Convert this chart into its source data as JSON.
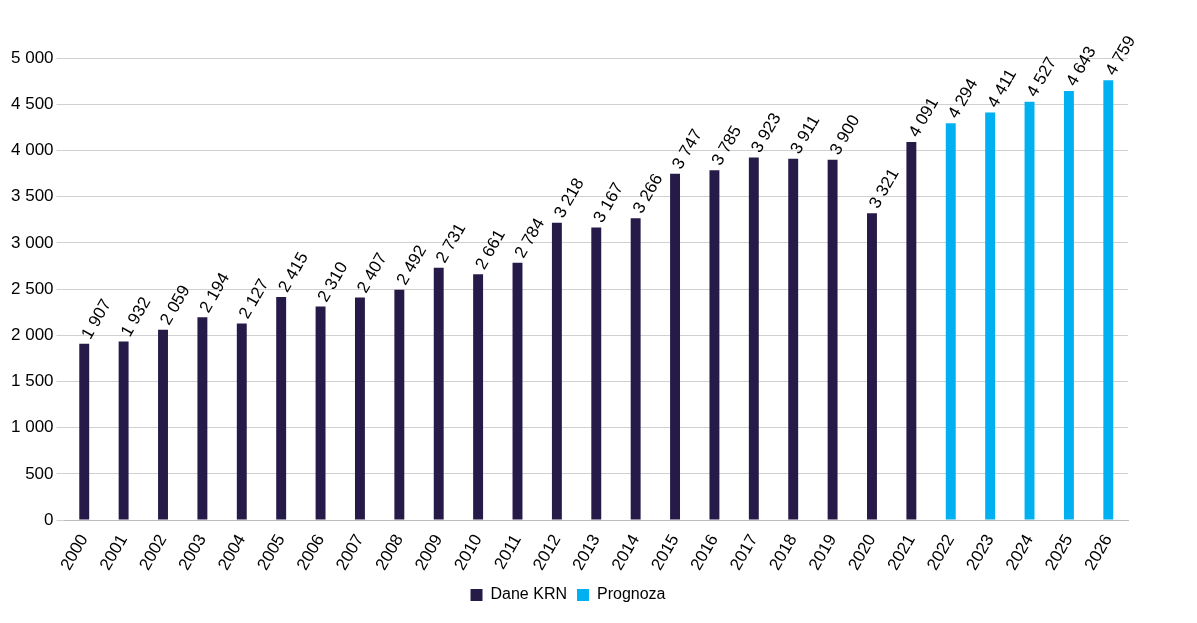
{
  "chart_data": {
    "type": "bar",
    "categories": [
      "2000",
      "2001",
      "2002",
      "2003",
      "2004",
      "2005",
      "2006",
      "2007",
      "2008",
      "2009",
      "2010",
      "2011",
      "2012",
      "2013",
      "2014",
      "2015",
      "2016",
      "2017",
      "2018",
      "2019",
      "2020",
      "2021",
      "2022",
      "2023",
      "2024",
      "2025",
      "2026"
    ],
    "series": [
      {
        "name": "Dane KRN",
        "color": "#261a48",
        "values": [
          1907,
          1932,
          2059,
          2194,
          2127,
          2415,
          2310,
          2407,
          2492,
          2731,
          2661,
          2784,
          3218,
          3167,
          3266,
          3747,
          3785,
          3923,
          3911,
          3900,
          3321,
          4091,
          null,
          null,
          null,
          null,
          null
        ],
        "value_labels": [
          "1 907",
          "1 932",
          "2 059",
          "2 194",
          "2 127",
          "2 415",
          "2 310",
          "2 407",
          "2 492",
          "2 731",
          "2 661",
          "2 784",
          "3 218",
          "3 167",
          "3 266",
          "3 747",
          "3 785",
          "3 923",
          "3 911",
          "3 900",
          "3 321",
          "4 091",
          null,
          null,
          null,
          null,
          null
        ]
      },
      {
        "name": "Prognoza",
        "color": "#00b0f0",
        "values": [
          null,
          null,
          null,
          null,
          null,
          null,
          null,
          null,
          null,
          null,
          null,
          null,
          null,
          null,
          null,
          null,
          null,
          null,
          null,
          null,
          null,
          null,
          4294,
          4411,
          4527,
          4643,
          4759
        ],
        "value_labels": [
          null,
          null,
          null,
          null,
          null,
          null,
          null,
          null,
          null,
          null,
          null,
          null,
          null,
          null,
          null,
          null,
          null,
          null,
          null,
          null,
          null,
          null,
          "4 294",
          "4 411",
          "4 527",
          "4 643",
          "4 759"
        ]
      }
    ],
    "ylim": [
      0,
      5000
    ],
    "yticks": [
      {
        "value": 0,
        "label": "0"
      },
      {
        "value": 500,
        "label": "500"
      },
      {
        "value": 1000,
        "label": "1 000"
      },
      {
        "value": 1500,
        "label": "1 500"
      },
      {
        "value": 2000,
        "label": "2 000"
      },
      {
        "value": 2500,
        "label": "2 500"
      },
      {
        "value": 3000,
        "label": "3 000"
      },
      {
        "value": 3500,
        "label": "3 500"
      },
      {
        "value": 4000,
        "label": "4 000"
      },
      {
        "value": 4500,
        "label": "4 500"
      },
      {
        "value": 5000,
        "label": "5 000"
      }
    ],
    "grid": "y",
    "legend": "bottom"
  }
}
